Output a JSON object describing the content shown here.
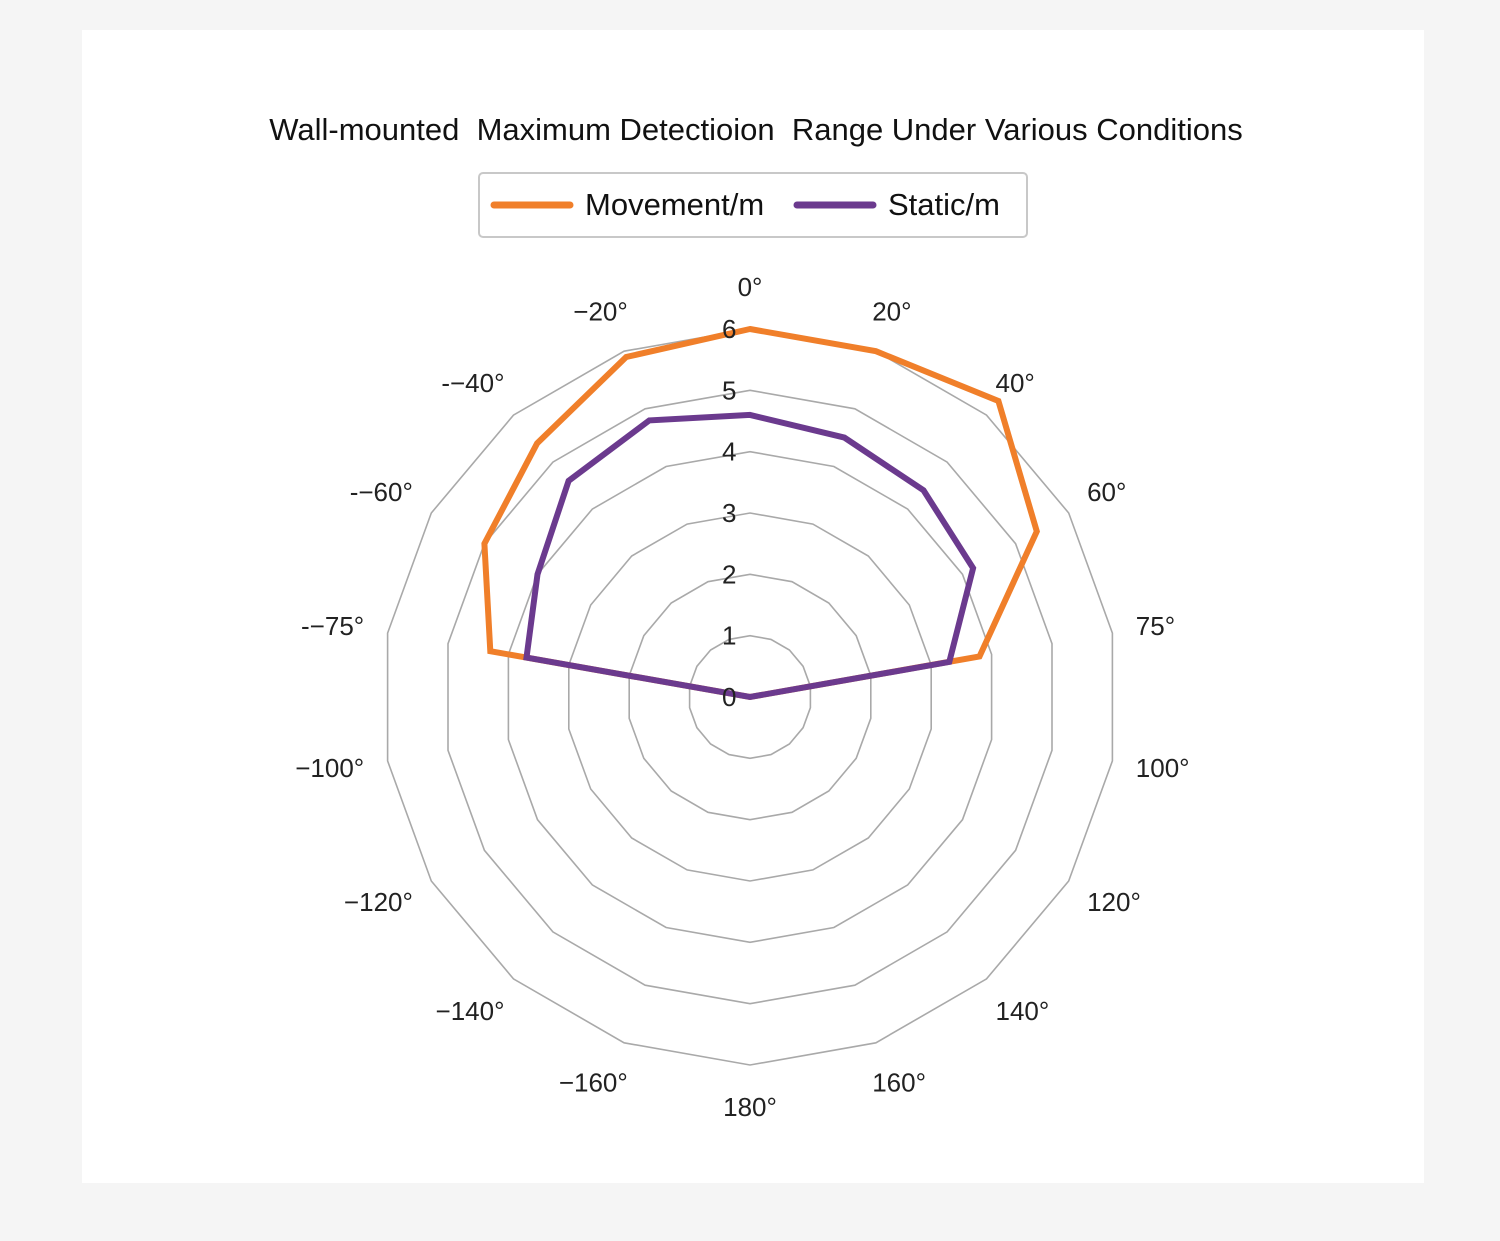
{
  "chart_data": {
    "type": "radar",
    "title": "Wall-mounted  Maximum Detectioion  Range Under Various Conditions",
    "categories": [
      "0°",
      "20°",
      "40°",
      "60°",
      "75°",
      "100°",
      "120°",
      "140°",
      "160°",
      "180°",
      "−160°",
      "−140°",
      "−120°",
      "−100°",
      "-−75°",
      "-−60°",
      "-−40°",
      "−20°"
    ],
    "radial_ticks": [
      "0",
      "1",
      "2",
      "3",
      "4",
      "5",
      "6"
    ],
    "rlim": [
      0,
      6
    ],
    "grid": true,
    "legend_position": "top",
    "series": [
      {
        "name": "Movement/m",
        "color": "#f07f2a",
        "values": [
          6,
          6,
          6.3,
          5.4,
          3.8,
          0,
          0,
          0,
          0,
          0,
          0,
          0,
          0,
          0,
          4.3,
          5.0,
          5.4,
          5.9
        ]
      },
      {
        "name": "Static/m",
        "color": "#6b3a8e",
        "values": [
          4.6,
          4.5,
          4.4,
          4.2,
          3.3,
          0,
          0,
          0,
          0,
          0,
          0,
          0,
          0,
          0,
          3.7,
          4.0,
          4.6,
          4.8
        ]
      }
    ]
  }
}
